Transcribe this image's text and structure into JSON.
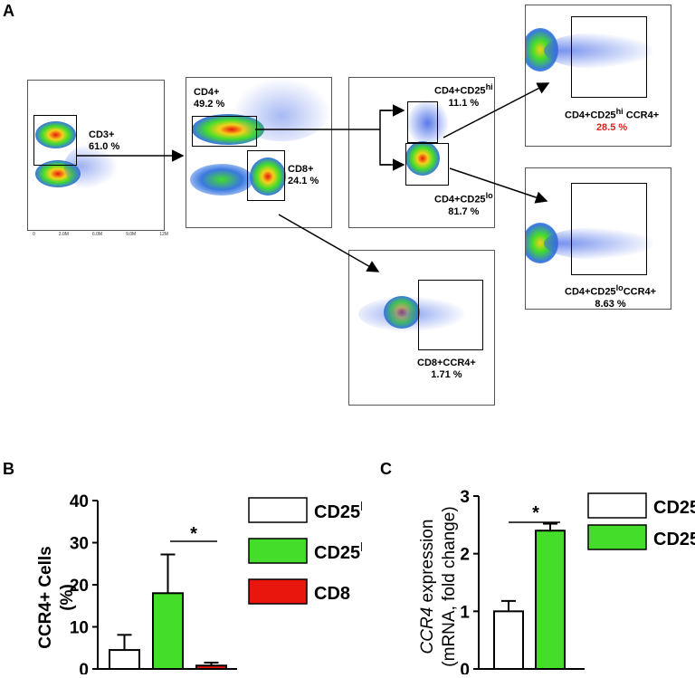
{
  "panels": {
    "a": "A",
    "b": "B",
    "c": "C"
  },
  "flow": {
    "cd3": {
      "name": "CD3+",
      "pct": "61.0 %",
      "xticks": [
        "0",
        "3.0M",
        "6.0M",
        "9.0M",
        "12M"
      ]
    },
    "cd4_cd8": {
      "cd4_name": "CD4+",
      "cd4_pct": "49.2 %",
      "cd8_name": "CD8+",
      "cd8_pct": "24.1 %"
    },
    "cd25": {
      "hi_base": "CD4+CD25",
      "hi_sup": "hi",
      "hi_pct": "11.1 %",
      "lo_base": "CD4+CD25",
      "lo_sup": "lo",
      "lo_pct": "81.7 %"
    },
    "ccr4_hi": {
      "pre": "CD4+CD25",
      "sup": "hi",
      "post": " CCR4+",
      "pct": "28.5 %"
    },
    "ccr4_lo": {
      "pre": "CD4+CD25",
      "sup": "lo",
      "post": "CCR4+",
      "pct": "8.63 %"
    },
    "cd8_ccr4": {
      "name": "CD8+CCR4+",
      "pct": "1.71 %"
    }
  },
  "chart_data": [
    {
      "type": "bar",
      "panel": "B",
      "categories": [
        "CD25lo",
        "CD25hi",
        "CD8"
      ],
      "values": [
        4.5,
        18.0,
        0.8
      ],
      "errors": [
        3.6,
        9.2,
        0.7
      ],
      "colors": [
        "#ffffff",
        "#44dd2a",
        "#e8160c"
      ],
      "ylabel": "CCR4+ Cells (%)",
      "ylabel_line1": "CCR4+ Cells",
      "ylabel_line2": "(%)",
      "ylim": [
        0,
        40
      ],
      "yticks": [
        0,
        10,
        20,
        30,
        40
      ],
      "significance": "*",
      "legend": [
        {
          "base": "CD25",
          "sup": "lo",
          "color": "#ffffff"
        },
        {
          "base": "CD25",
          "sup": "hi",
          "color": "#44dd2a"
        },
        {
          "base": "CD8",
          "sup": "",
          "color": "#e8160c"
        }
      ]
    },
    {
      "type": "bar",
      "panel": "C",
      "categories": [
        "CD25lo",
        "CD25hi"
      ],
      "values": [
        1.0,
        2.4
      ],
      "errors": [
        0.18,
        0.12
      ],
      "colors": [
        "#ffffff",
        "#44dd2a"
      ],
      "ylabel": "CCR4 expression (mRNA, fold change)",
      "ylabel_italic": "CCR4",
      "ylabel_rest": " expression",
      "ylabel_line2": "(mRNA, fold change)",
      "ylim": [
        0,
        3
      ],
      "yticks": [
        0,
        1,
        2,
        3
      ],
      "significance": "*",
      "legend": [
        {
          "base": "CD25",
          "sup": "lo",
          "color": "#ffffff"
        },
        {
          "base": "CD25",
          "sup": "hi",
          "color": "#44dd2a"
        }
      ]
    }
  ]
}
